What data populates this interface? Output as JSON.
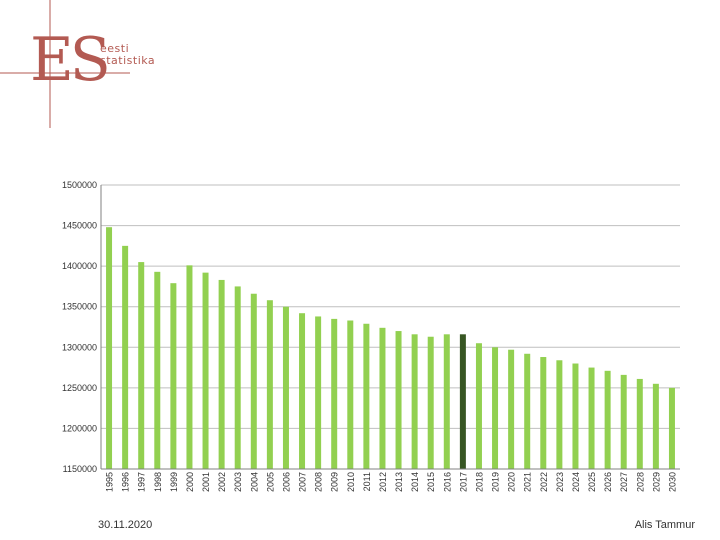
{
  "logo": {
    "mark": "ES",
    "line1": "eesti",
    "line2": "statistika"
  },
  "footer": {
    "date": "30.11.2020",
    "author": "Alis Tammur"
  },
  "colors": {
    "bar": "#92d050",
    "highlight": "#375623",
    "grid": "#bfbfbf",
    "logo": "#b35a52"
  },
  "chart_data": {
    "type": "bar",
    "title": "",
    "xlabel": "",
    "ylabel": "",
    "ylim": [
      1150000,
      1500000
    ],
    "yticks": [
      1150000,
      1200000,
      1250000,
      1300000,
      1350000,
      1400000,
      1450000,
      1500000
    ],
    "grid": true,
    "highlight_category": "2017",
    "categories": [
      "1995",
      "1996",
      "1997",
      "1998",
      "1999",
      "2000",
      "2001",
      "2002",
      "2003",
      "2004",
      "2005",
      "2006",
      "2007",
      "2008",
      "2009",
      "2010",
      "2011",
      "2012",
      "2013",
      "2014",
      "2015",
      "2016",
      "2017",
      "2018",
      "2019",
      "2020",
      "2021",
      "2022",
      "2023",
      "2024",
      "2025",
      "2026",
      "2027",
      "2028",
      "2029",
      "2030"
    ],
    "values": [
      1448000,
      1425000,
      1405000,
      1393000,
      1379000,
      1401000,
      1392000,
      1383000,
      1375000,
      1366000,
      1358000,
      1350000,
      1342000,
      1338000,
      1335000,
      1333000,
      1329000,
      1324000,
      1320000,
      1316000,
      1313000,
      1316000,
      1316000,
      1305000,
      1300000,
      1297000,
      1292000,
      1288000,
      1284000,
      1280000,
      1275000,
      1271000,
      1266000,
      1261000,
      1255000,
      1250000
    ]
  }
}
